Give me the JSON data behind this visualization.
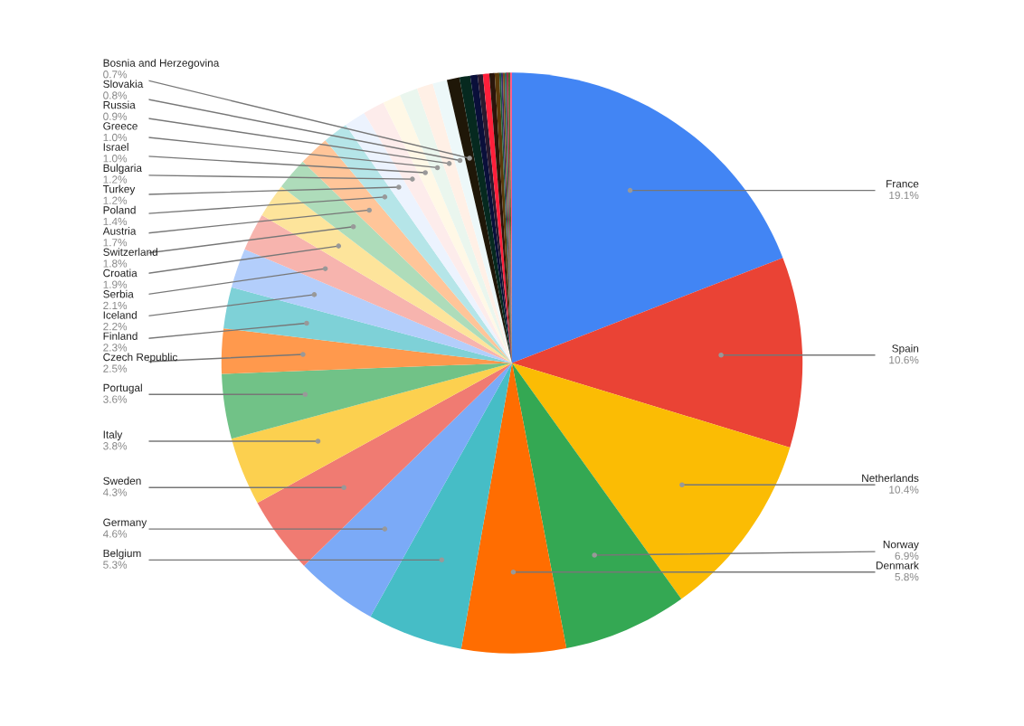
{
  "chart_data": {
    "type": "pie",
    "categories": [
      "France",
      "Spain",
      "Netherlands",
      "Norway",
      "Denmark",
      "Belgium",
      "Germany",
      "Sweden",
      "Italy",
      "Portugal",
      "Czech Republic",
      "Finland",
      "Iceland",
      "Serbia",
      "Croatia",
      "Switzerland",
      "Austria",
      "Poland",
      "Turkey",
      "Bulgaria",
      "Israel",
      "Greece",
      "Russia",
      "Slovakia",
      "Bosnia and Herzegovina",
      null,
      null,
      null,
      null,
      null,
      null,
      null,
      null,
      null,
      null,
      null,
      null,
      null
    ],
    "values": [
      19.1,
      10.6,
      10.4,
      6.9,
      5.8,
      5.3,
      4.6,
      4.3,
      3.8,
      3.6,
      2.5,
      2.3,
      2.2,
      2.1,
      1.9,
      1.8,
      1.7,
      1.4,
      1.2,
      1.2,
      1.0,
      1.0,
      0.9,
      0.8,
      0.7,
      0.6,
      0.4,
      0.3,
      0.35,
      0.3,
      0.25,
      0.1,
      0.1,
      0.1,
      0.1,
      0.1,
      0.1,
      0.1
    ],
    "value_labels": [
      "19.1%",
      "10.6%",
      "10.4%",
      "6.9%",
      "5.8%",
      "5.3%",
      "4.6%",
      "4.3%",
      "3.8%",
      "3.6%",
      "2.5%",
      "2.3%",
      "2.2%",
      "2.1%",
      "1.9%",
      "1.8%",
      "1.7%",
      "1.4%",
      "1.2%",
      "1.2%",
      "1.0%",
      "1.0%",
      "0.9%",
      "0.8%",
      "0.7%",
      null,
      null,
      null,
      null,
      null,
      null,
      null,
      null,
      null,
      null,
      null,
      null,
      null
    ],
    "colors": [
      "#4285f4",
      "#ea4335",
      "#fbbc04",
      "#34a853",
      "#ff6d01",
      "#46bdc6",
      "#7baaf7",
      "#f07b72",
      "#fcd04f",
      "#71c287",
      "#ff994d",
      "#7ed1d7",
      "#b3cefb",
      "#f7b4ae",
      "#fde49b",
      "#aedcba",
      "#ffc599",
      "#b5e5e8",
      "#ecf3fe",
      "#fdeceb",
      "#fff8e6",
      "#eaf6ee",
      "#fff0e6",
      "#edf8f9",
      "#1f1708",
      "#06291f",
      "#0a0f3a",
      "#2a1a2f",
      "#ff1f3a",
      "#2a150a",
      "#5a3a0a",
      "#1a5a3a",
      "#3a2a6a",
      "#7a4a1a",
      "#2a6a5a",
      "#9a2a4a",
      "#4a6a2a",
      "#ff5a8a"
    ],
    "legend": false
  }
}
